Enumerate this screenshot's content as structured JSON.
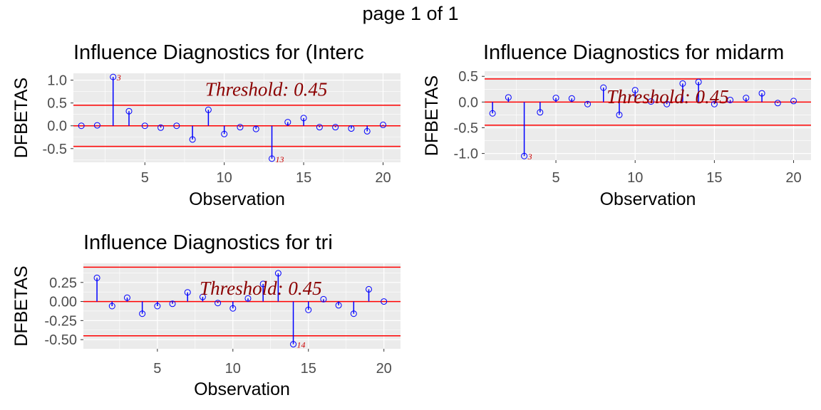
{
  "page_title": "page 1 of 1",
  "colors": {
    "panel_bg": "#EBEBEB",
    "grid": "#FFFFFF",
    "stem": "#0000FF",
    "point": "#0000FF",
    "reference_line": "#FF0000",
    "threshold_text": "#8B0000",
    "point_label": "#CC0000",
    "tick_text": "#4D4D4D"
  },
  "chart_data": [
    {
      "type": "lollipop",
      "title": "Influence Diagnostics for (Interc",
      "xlabel": "Observation",
      "ylabel": "DFBETAS",
      "xlim": [
        0.5,
        21.1
      ],
      "ylim": [
        -0.8,
        1.15
      ],
      "x_ticks": [
        5,
        10,
        15,
        20
      ],
      "y_ticks": [
        -0.5,
        0.0,
        0.5,
        1.0
      ],
      "y_tick_labels": [
        "-0.5",
        "0.0",
        "0.5",
        "1.0"
      ],
      "threshold": 0.45,
      "threshold_label": "Threshold: 0.45",
      "threshold_label_at": [
        8.8,
        0.66
      ],
      "x": [
        1,
        2,
        3,
        4,
        5,
        6,
        7,
        8,
        9,
        10,
        11,
        12,
        13,
        14,
        15,
        16,
        17,
        18,
        19,
        20
      ],
      "values": [
        0.0,
        0.01,
        1.07,
        0.32,
        0.0,
        -0.04,
        0.0,
        -0.3,
        0.35,
        -0.18,
        -0.03,
        -0.07,
        -0.72,
        0.08,
        0.17,
        -0.03,
        -0.03,
        -0.06,
        -0.12,
        0.02
      ],
      "point_labels": [
        {
          "x": 3,
          "label": "3"
        },
        {
          "x": 13,
          "label": "13"
        }
      ]
    },
    {
      "type": "lollipop",
      "title": "Influence Diagnostics for midarm",
      "xlabel": "Observation",
      "ylabel": "DFBETAS",
      "xlim": [
        0.5,
        21.1
      ],
      "ylim": [
        -1.13,
        0.6
      ],
      "x_ticks": [
        5,
        10,
        15,
        20
      ],
      "y_ticks": [
        -1.0,
        -0.5,
        0.0,
        0.5
      ],
      "y_tick_labels": [
        "-1.0",
        "-0.5",
        "0.0",
        "0.5"
      ],
      "threshold": 0.45,
      "threshold_label": "Threshold: 0.45",
      "threshold_label_at": [
        8.2,
        -0.02
      ],
      "x": [
        1,
        2,
        3,
        4,
        5,
        6,
        7,
        8,
        9,
        10,
        11,
        12,
        13,
        14,
        15,
        16,
        17,
        18,
        19,
        20
      ],
      "values": [
        -0.22,
        0.09,
        -1.05,
        -0.2,
        0.08,
        0.07,
        -0.04,
        0.28,
        -0.25,
        0.23,
        0.01,
        -0.04,
        0.36,
        0.39,
        -0.04,
        0.04,
        0.08,
        0.17,
        -0.02,
        0.02
      ],
      "point_labels": [
        {
          "x": 3,
          "label": "3"
        }
      ]
    },
    {
      "type": "lollipop",
      "title": "Influence Diagnostics for tri",
      "xlabel": "Observation",
      "ylabel": "DFBETAS",
      "xlim": [
        0.1,
        21.1
      ],
      "ylim": [
        -0.62,
        0.5
      ],
      "x_ticks": [
        5,
        10,
        15,
        20
      ],
      "y_ticks": [
        -0.5,
        -0.25,
        0.0,
        0.25
      ],
      "y_tick_labels": [
        "-0.50",
        "-0.25",
        "0.00",
        "0.25"
      ],
      "threshold": 0.45,
      "threshold_label": "Threshold: 0.45",
      "threshold_label_at": [
        7.8,
        0.09
      ],
      "x": [
        1,
        2,
        3,
        4,
        5,
        6,
        7,
        8,
        9,
        10,
        11,
        12,
        13,
        14,
        15,
        16,
        17,
        18,
        19,
        20
      ],
      "values": [
        0.31,
        -0.06,
        0.05,
        -0.16,
        -0.06,
        -0.03,
        0.12,
        0.06,
        -0.02,
        -0.09,
        0.04,
        0.23,
        0.37,
        -0.56,
        -0.11,
        0.03,
        -0.05,
        -0.16,
        0.16,
        0.0
      ],
      "point_labels": [
        {
          "x": 14,
          "label": "14"
        }
      ]
    }
  ]
}
